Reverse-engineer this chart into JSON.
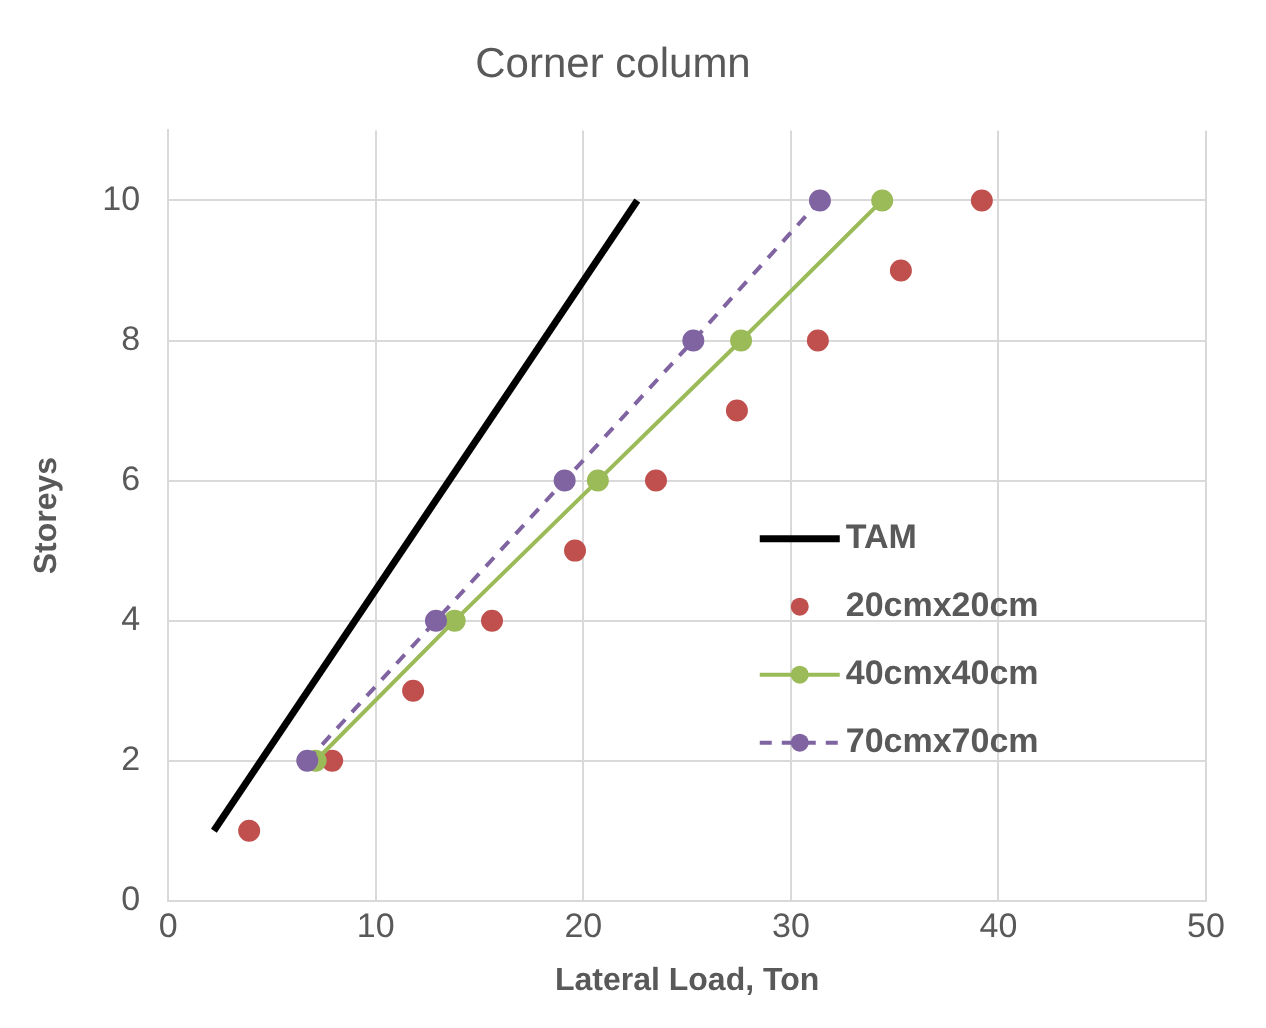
{
  "chart_data": {
    "type": "line",
    "title": "Corner column",
    "xlabel": "Lateral Load, Ton",
    "ylabel": "Storeys",
    "xlim": [
      0,
      50
    ],
    "xticks": [
      0,
      10,
      20,
      30,
      40,
      50
    ],
    "ylim": [
      0,
      11
    ],
    "yticks": [
      0,
      2,
      4,
      6,
      8,
      10
    ],
    "grid": true,
    "legend": "right",
    "series": [
      {
        "name": "TAM",
        "color": "#000000",
        "marker": "none",
        "line_style": "solid",
        "x": [
          2.2,
          22.6
        ],
        "values": [
          1,
          10
        ]
      },
      {
        "name": "20cmx20cm",
        "type": "scatter",
        "color": "#c0504d",
        "marker": "circle",
        "x": [
          3.9,
          7.9,
          11.8,
          15.6,
          19.6,
          23.5,
          27.4,
          31.3,
          35.3,
          39.2
        ],
        "values": [
          1,
          2,
          3,
          4,
          5,
          6,
          7,
          8,
          9,
          10
        ]
      },
      {
        "name": "40cmx40cm",
        "color": "#9bbb59",
        "marker": "circle",
        "line_style": "solid",
        "x": [
          7.1,
          13.8,
          20.7,
          27.6,
          34.4
        ],
        "values": [
          2,
          4,
          6,
          8,
          10
        ]
      },
      {
        "name": "70cmx70cm",
        "color": "#8064a2",
        "marker": "circle",
        "line_style": "dashed",
        "x": [
          6.7,
          12.9,
          19.1,
          25.3,
          31.4
        ],
        "values": [
          2,
          4,
          6,
          8,
          10
        ]
      }
    ]
  }
}
